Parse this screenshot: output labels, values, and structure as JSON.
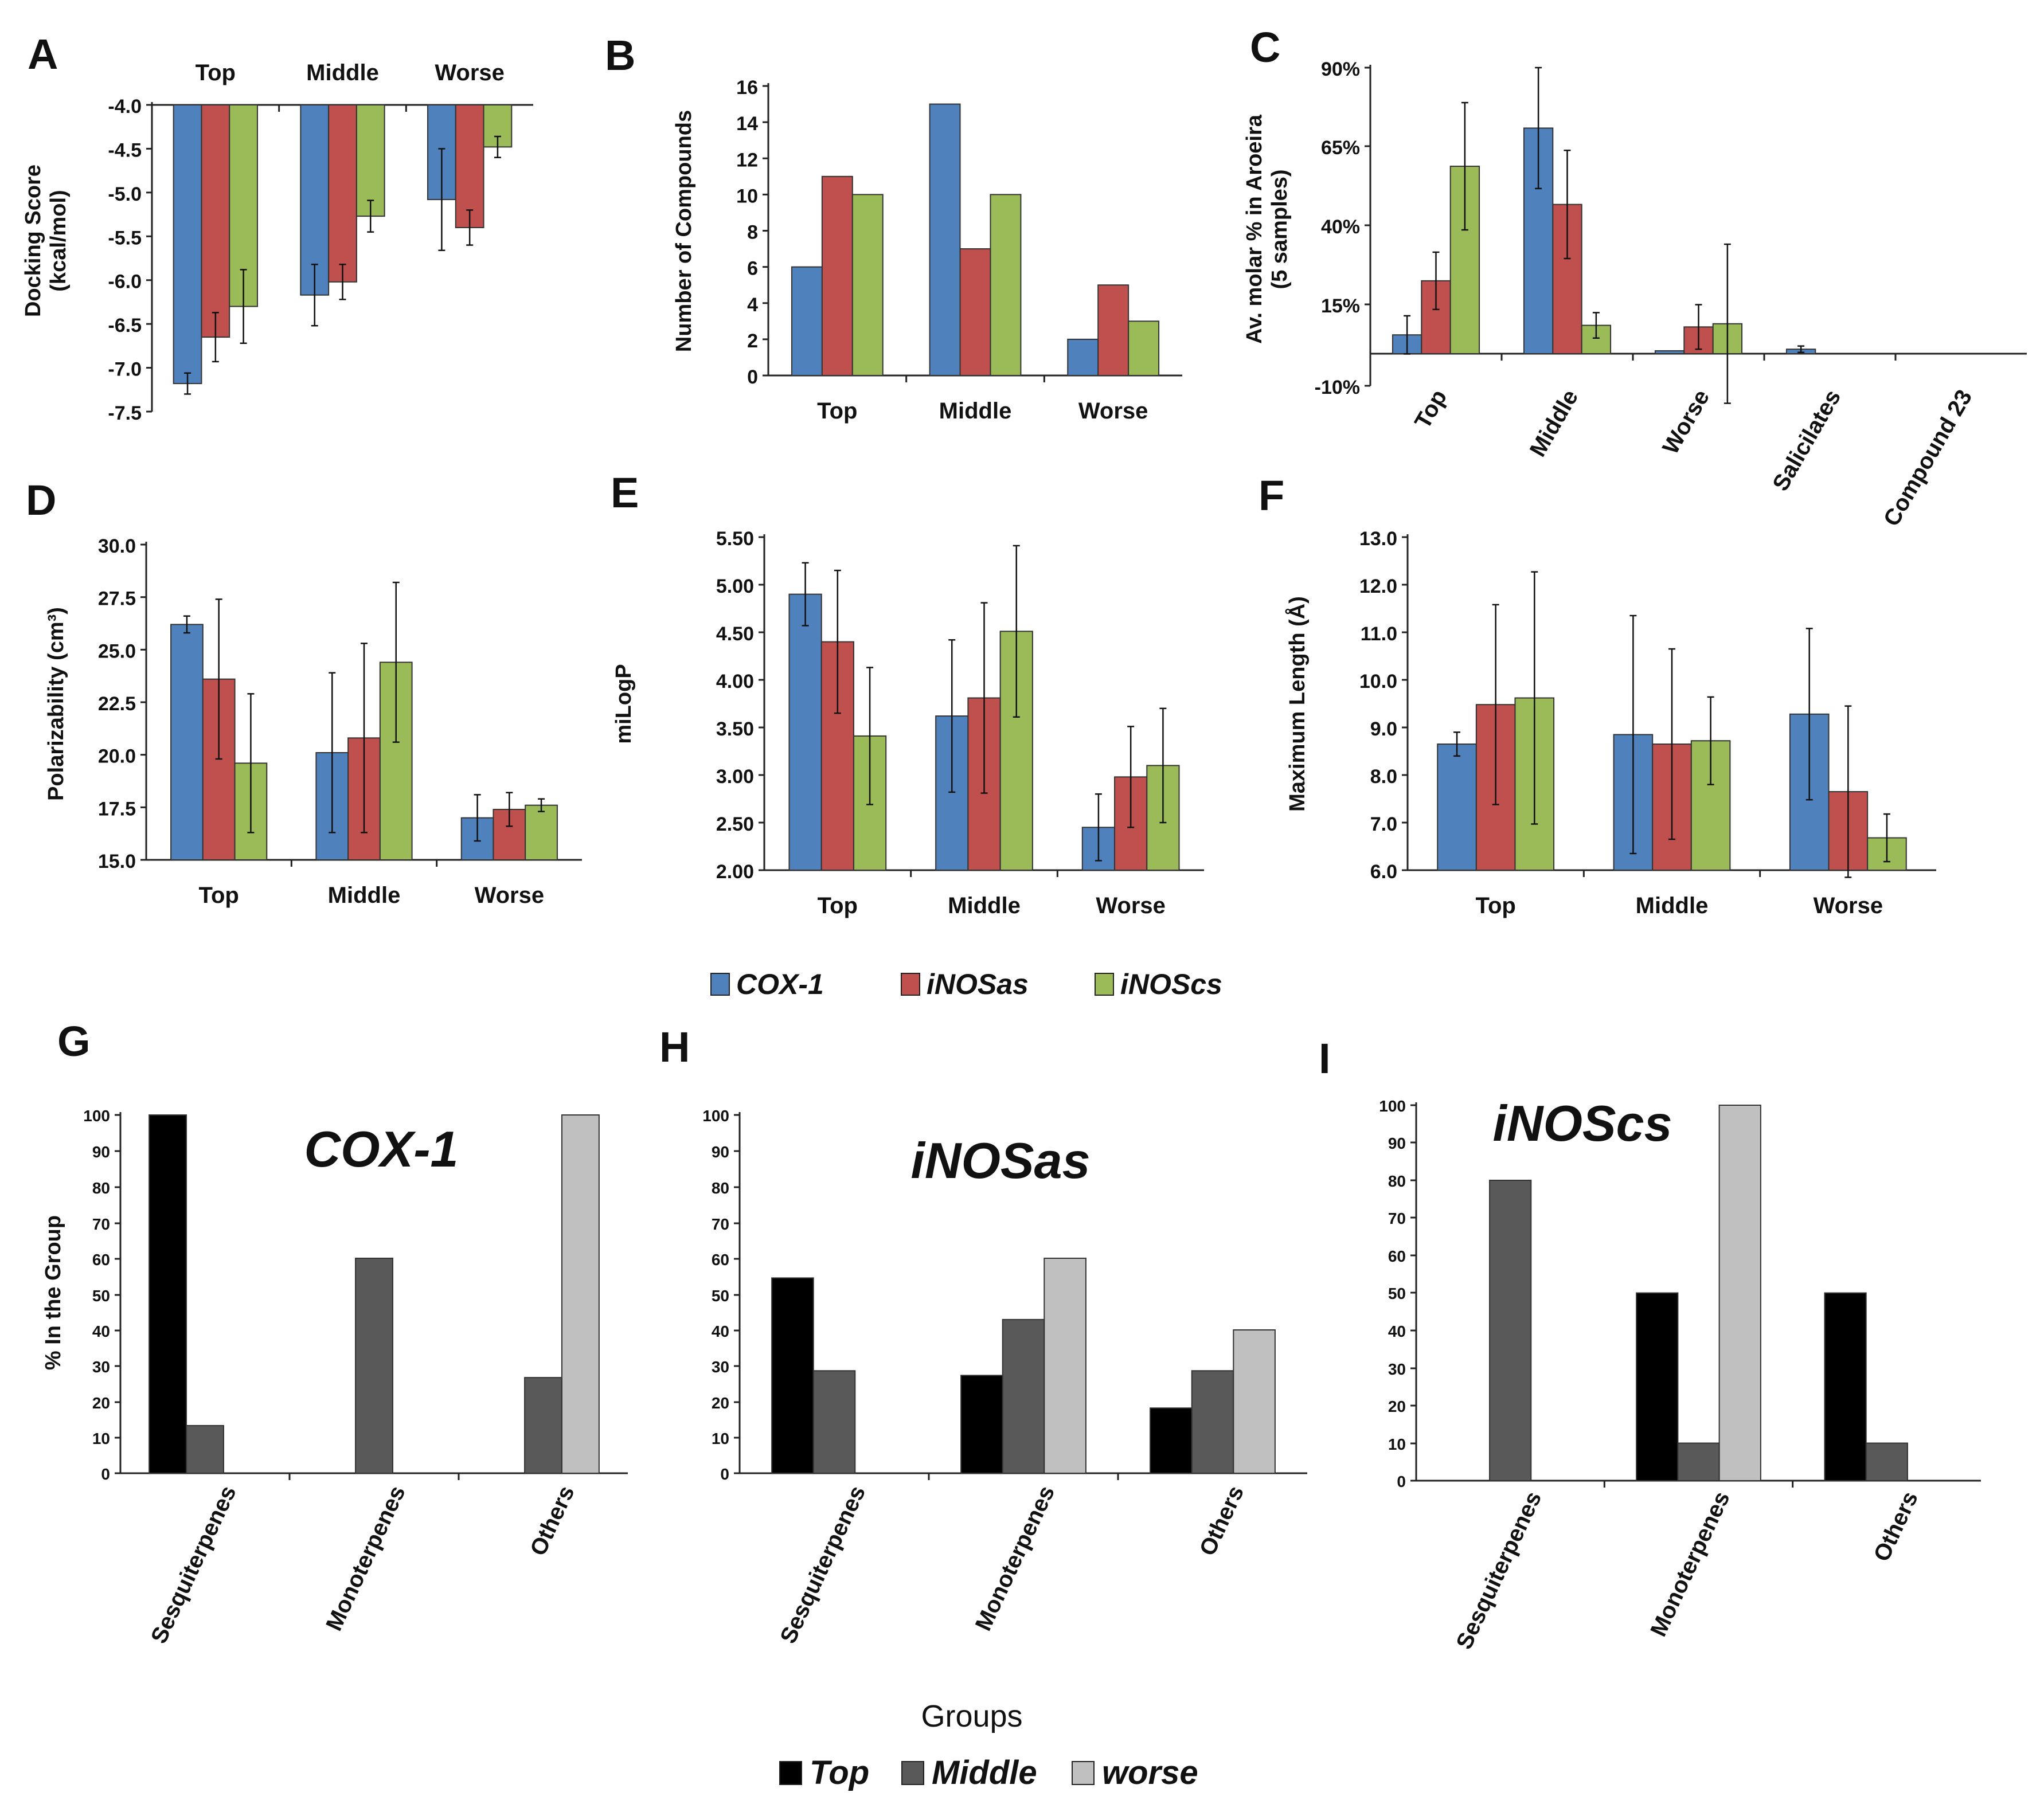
{
  "colors": {
    "COX-1": "#4f81bd",
    "iNOSas": "#c0504d",
    "iNOScs": "#9bbb59",
    "Top": "#000000",
    "Middle": "#595959",
    "worse": "#c0c0c0"
  },
  "legend_top": {
    "items": [
      "COX-1",
      "iNOSas",
      "iNOScs"
    ]
  },
  "legend_bottom": {
    "title": "Groups",
    "items": [
      "Top",
      "Middle",
      "worse"
    ]
  },
  "chart_data": [
    {
      "id": "A",
      "type": "bar",
      "letter": "A",
      "ylabel": [
        "Docking Score",
        "(kcal/mol)"
      ],
      "categories": [
        "Top",
        "Middle",
        "Worse"
      ],
      "categories_on_top": true,
      "ylim": [
        -7.5,
        -4.0
      ],
      "ticks": [
        "-4.0",
        "-4.5",
        "-5.0",
        "-5.5",
        "-6.0",
        "-6.5",
        "-7.0",
        "-7.5"
      ],
      "tick_values": [
        -4.0,
        -4.5,
        -5.0,
        -5.5,
        -6.0,
        -6.5,
        -7.0,
        -7.5
      ],
      "baseline": -4.0,
      "series": [
        {
          "name": "COX-1",
          "values": [
            -7.18,
            -6.17,
            -5.08
          ],
          "errors": [
            0.12,
            0.35,
            0.58
          ]
        },
        {
          "name": "iNOSas",
          "values": [
            -6.65,
            -6.02,
            -5.4
          ],
          "errors": [
            0.28,
            0.2,
            0.2
          ]
        },
        {
          "name": "iNOScs",
          "values": [
            -6.3,
            -5.27,
            -4.48
          ],
          "errors": [
            0.42,
            0.18,
            0.12
          ]
        }
      ]
    },
    {
      "id": "B",
      "type": "bar",
      "letter": "B",
      "ylabel": [
        "Number of Compounds"
      ],
      "categories": [
        "Top",
        "Middle",
        "Worse"
      ],
      "ylim": [
        0,
        16
      ],
      "ticks": [
        "0",
        "2",
        "4",
        "6",
        "8",
        "10",
        "12",
        "14",
        "16"
      ],
      "tick_values": [
        0,
        2,
        4,
        6,
        8,
        10,
        12,
        14,
        16
      ],
      "series": [
        {
          "name": "COX-1",
          "values": [
            6,
            15,
            2
          ]
        },
        {
          "name": "iNOSas",
          "values": [
            11,
            7,
            5
          ]
        },
        {
          "name": "iNOScs",
          "values": [
            10,
            10,
            3
          ]
        }
      ]
    },
    {
      "id": "C",
      "type": "bar",
      "letter": "C",
      "ylabel": [
        "Av. molar % in Aroeira",
        "(5 samples)"
      ],
      "categories": [
        "Top",
        "Middle",
        "Worse",
        "Salicilates",
        "Compound 23"
      ],
      "rotated_categories": true,
      "ylim": [
        -10,
        90
      ],
      "ticks": [
        "90%",
        "65%",
        "40%",
        "15%",
        "-10%"
      ],
      "tick_values": [
        90,
        65,
        40,
        15,
        -10
      ],
      "baseline": 0,
      "series": [
        {
          "name": "COX-1",
          "values": [
            6,
            71,
            1,
            1.5,
            0
          ],
          "errors": [
            6,
            19,
            0,
            1,
            0
          ]
        },
        {
          "name": "iNOSas",
          "values": [
            23,
            47,
            8.5,
            0,
            0
          ],
          "errors": [
            9,
            17,
            7,
            0,
            0
          ]
        },
        {
          "name": "iNOScs",
          "values": [
            59,
            9,
            9.5,
            0,
            0
          ],
          "errors": [
            20,
            4,
            25,
            0,
            0
          ]
        }
      ]
    },
    {
      "id": "D",
      "type": "bar",
      "letter": "D",
      "ylabel": [
        "Polarizability (cm³)"
      ],
      "categories": [
        "Top",
        "Middle",
        "Worse"
      ],
      "ylim": [
        15,
        30
      ],
      "ticks": [
        "15.0",
        "17.5",
        "20.0",
        "22.5",
        "25.0",
        "27.5",
        "30.0"
      ],
      "tick_values": [
        15,
        17.5,
        20,
        22.5,
        25,
        27.5,
        30
      ],
      "series": [
        {
          "name": "COX-1",
          "values": [
            26.2,
            20.1,
            17.0
          ],
          "errors": [
            0.4,
            3.8,
            1.1
          ]
        },
        {
          "name": "iNOSas",
          "values": [
            23.6,
            20.8,
            17.4
          ],
          "errors": [
            3.8,
            4.5,
            0.8
          ]
        },
        {
          "name": "iNOScs",
          "values": [
            19.6,
            24.4,
            17.6
          ],
          "errors": [
            3.3,
            3.8,
            0.3
          ]
        }
      ]
    },
    {
      "id": "E",
      "type": "bar",
      "letter": "E",
      "ylabel": [
        "miLogP"
      ],
      "categories": [
        "Top",
        "Middle",
        "Worse"
      ],
      "ylim": [
        2.0,
        5.5
      ],
      "ticks": [
        "2.00",
        "2.50",
        "3.00",
        "3.50",
        "4.00",
        "4.50",
        "5.00",
        "5.50"
      ],
      "tick_values": [
        2.0,
        2.5,
        3.0,
        3.5,
        4.0,
        4.5,
        5.0,
        5.5
      ],
      "series": [
        {
          "name": "COX-1",
          "values": [
            4.9,
            3.62,
            2.45
          ],
          "errors": [
            0.33,
            0.8,
            0.35
          ]
        },
        {
          "name": "iNOSas",
          "values": [
            4.4,
            3.81,
            2.98
          ],
          "errors": [
            0.75,
            1.0,
            0.53
          ]
        },
        {
          "name": "iNOScs",
          "values": [
            3.41,
            4.51,
            3.1
          ],
          "errors": [
            0.72,
            0.9,
            0.6
          ]
        }
      ]
    },
    {
      "id": "F",
      "type": "bar",
      "letter": "F",
      "ylabel": [
        "Maximum Length (Å)"
      ],
      "categories": [
        "Top",
        "Middle",
        "Worse"
      ],
      "ylim": [
        6.0,
        13.0
      ],
      "ticks": [
        "6.0",
        "7.0",
        "8.0",
        "9.0",
        "10.0",
        "11.0",
        "12.0",
        "13.0"
      ],
      "tick_values": [
        6,
        7,
        8,
        9,
        10,
        11,
        12,
        13
      ],
      "series": [
        {
          "name": "COX-1",
          "values": [
            8.65,
            8.85,
            9.28
          ],
          "errors": [
            0.25,
            2.5,
            1.8
          ]
        },
        {
          "name": "iNOSas",
          "values": [
            9.48,
            8.65,
            7.65
          ],
          "errors": [
            2.1,
            2.0,
            1.8
          ]
        },
        {
          "name": "iNOScs",
          "values": [
            9.62,
            8.72,
            6.68
          ],
          "errors": [
            2.65,
            0.92,
            0.5
          ]
        }
      ]
    },
    {
      "id": "G",
      "type": "bar",
      "letter": "G",
      "inset_title": "COX-1",
      "ylabel": [
        "% In the Group"
      ],
      "categories": [
        "Sesquiterpenes",
        "Monoterpenes",
        "Others"
      ],
      "rotated_categories": true,
      "ylim": [
        0,
        100
      ],
      "ticks": [
        "0",
        "10",
        "20",
        "30",
        "40",
        "50",
        "60",
        "70",
        "80",
        "90",
        "100"
      ],
      "tick_values": [
        0,
        10,
        20,
        30,
        40,
        50,
        60,
        70,
        80,
        90,
        100
      ],
      "series": [
        {
          "name": "Top",
          "values": [
            100,
            0,
            0
          ]
        },
        {
          "name": "Middle",
          "values": [
            13.3,
            60,
            26.7
          ]
        },
        {
          "name": "worse",
          "values": [
            0,
            0,
            100
          ]
        }
      ]
    },
    {
      "id": "H",
      "type": "bar",
      "letter": "H",
      "inset_title": "iNOSas",
      "ylabel": [],
      "categories": [
        "Sesquiterpenes",
        "Monoterpenes",
        "Others"
      ],
      "rotated_categories": true,
      "ylim": [
        0,
        100
      ],
      "ticks": [
        "0",
        "10",
        "20",
        "30",
        "40",
        "50",
        "60",
        "70",
        "80",
        "90",
        "100"
      ],
      "tick_values": [
        0,
        10,
        20,
        30,
        40,
        50,
        60,
        70,
        80,
        90,
        100
      ],
      "series": [
        {
          "name": "Top",
          "values": [
            54.5,
            27.3,
            18.2
          ]
        },
        {
          "name": "Middle",
          "values": [
            28.6,
            42.9,
            28.6
          ]
        },
        {
          "name": "worse",
          "values": [
            0,
            60,
            40
          ]
        }
      ]
    },
    {
      "id": "I",
      "type": "bar",
      "letter": "I",
      "inset_title": "iNOScs",
      "ylabel": [],
      "categories": [
        "Sesquiterpenes",
        "Monoterpenes",
        "Others"
      ],
      "rotated_categories": true,
      "ylim": [
        0,
        100
      ],
      "ticks": [
        "0",
        "10",
        "20",
        "30",
        "40",
        "50",
        "60",
        "70",
        "80",
        "90",
        "100"
      ],
      "tick_values": [
        0,
        10,
        20,
        30,
        40,
        50,
        60,
        70,
        80,
        90,
        100
      ],
      "series": [
        {
          "name": "Top",
          "values": [
            0,
            50,
            50
          ]
        },
        {
          "name": "Middle",
          "values": [
            80,
            10,
            10
          ]
        },
        {
          "name": "worse",
          "values": [
            0,
            100,
            0
          ]
        }
      ]
    }
  ]
}
